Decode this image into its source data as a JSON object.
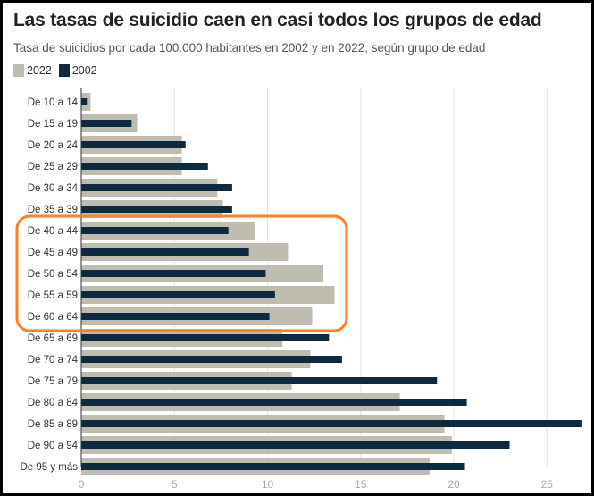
{
  "chart_data": {
    "type": "bar",
    "orientation": "horizontal",
    "title": "Las tasas de suicidio caen en casi todos los grupos de edad",
    "subtitle": "Tasa de suicidios por cada 100.000 habitantes en 2002 y en 2022, según grupo de edad",
    "categories": [
      "De 10 a 14",
      "De 15 a 19",
      "De 20 a 24",
      "De 25 a 29",
      "De 30 a 34",
      "De 35 a 39",
      "De 40 a 44",
      "De 45 a 49",
      "De 50 a 54",
      "De 55 a 59",
      "De 60 a 64",
      "De 65 a 69",
      "De 70 a 74",
      "De 75 a 79",
      "De 80 a 84",
      "De 85 a 89",
      "De 90 a 94",
      "De 95 y más"
    ],
    "series": [
      {
        "name": "2022",
        "color": "#bfbcb0",
        "values": [
          0.5,
          3.0,
          5.4,
          5.4,
          7.3,
          7.6,
          9.3,
          11.1,
          13.0,
          13.6,
          12.4,
          10.8,
          12.3,
          11.3,
          17.1,
          19.5,
          19.9,
          18.7
        ]
      },
      {
        "name": "2002",
        "color": "#0e2a40",
        "values": [
          0.3,
          2.7,
          5.6,
          6.8,
          8.1,
          8.1,
          7.9,
          9.0,
          9.9,
          10.4,
          10.1,
          13.3,
          14.0,
          19.1,
          20.7,
          26.9,
          23.0,
          20.6
        ]
      }
    ],
    "xticks": [
      "0",
      "5",
      "10",
      "15",
      "20",
      "25"
    ],
    "xlim": [
      0,
      27
    ],
    "grid": true,
    "legend_position": "top-left",
    "highlight": {
      "from": "De 40 a 44",
      "to": "De 60 a 64",
      "color": "#ff7f27"
    }
  }
}
